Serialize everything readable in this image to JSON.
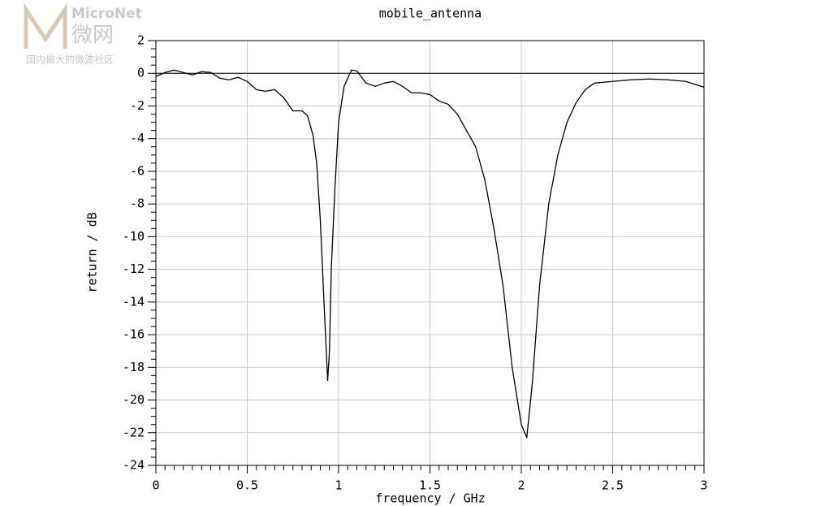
{
  "watermark": {
    "brand": "MicroNet",
    "brand_cn": "微网",
    "tagline": "国内最大的微波社区"
  },
  "chart_data": {
    "type": "line",
    "title": "mobile_antenna",
    "x_label": "frequency / GHz",
    "y_label": "return / dB",
    "xlim": [
      0,
      3
    ],
    "xticks": [
      0,
      0.5,
      1,
      1.5,
      2,
      2.5,
      3
    ],
    "ylim": [
      -24,
      2
    ],
    "yticks": [
      -24,
      -22,
      -20,
      -18,
      -16,
      -14,
      -12,
      -10,
      -8,
      -6,
      -4,
      -2,
      0,
      2
    ],
    "grid": true,
    "hlines": [
      0
    ],
    "series": [
      {
        "color": "#000000",
        "x": [
          0,
          0.05,
          0.1,
          0.15,
          0.2,
          0.25,
          0.3,
          0.35,
          0.4,
          0.45,
          0.5,
          0.55,
          0.6,
          0.65,
          0.7,
          0.75,
          0.8,
          0.83,
          0.86,
          0.88,
          0.9,
          0.92,
          0.94,
          0.95,
          0.96,
          0.98,
          1.0,
          1.03,
          1.07,
          1.1,
          1.15,
          1.2,
          1.25,
          1.3,
          1.35,
          1.4,
          1.45,
          1.5,
          1.55,
          1.6,
          1.65,
          1.7,
          1.75,
          1.8,
          1.85,
          1.9,
          1.95,
          2.0,
          2.03,
          2.06,
          2.1,
          2.15,
          2.2,
          2.25,
          2.3,
          2.35,
          2.4,
          2.5,
          2.6,
          2.7,
          2.8,
          2.9,
          3.0
        ],
        "values": [
          -0.2,
          0.05,
          0.2,
          0.05,
          -0.1,
          0.1,
          0.05,
          -0.3,
          -0.4,
          -0.25,
          -0.5,
          -1.0,
          -1.1,
          -1.0,
          -1.5,
          -2.3,
          -2.3,
          -2.6,
          -3.8,
          -5.5,
          -9,
          -14,
          -18.8,
          -17,
          -12,
          -7,
          -3,
          -0.8,
          0.2,
          0.15,
          -0.6,
          -0.8,
          -0.6,
          -0.5,
          -0.8,
          -1.2,
          -1.2,
          -1.3,
          -1.7,
          -1.9,
          -2.5,
          -3.5,
          -4.5,
          -6.5,
          -9.5,
          -13,
          -18,
          -21.5,
          -22.3,
          -19,
          -13,
          -8,
          -5,
          -3,
          -1.8,
          -1.0,
          -0.6,
          -0.5,
          -0.4,
          -0.35,
          -0.4,
          -0.5,
          -0.85
        ]
      }
    ]
  }
}
